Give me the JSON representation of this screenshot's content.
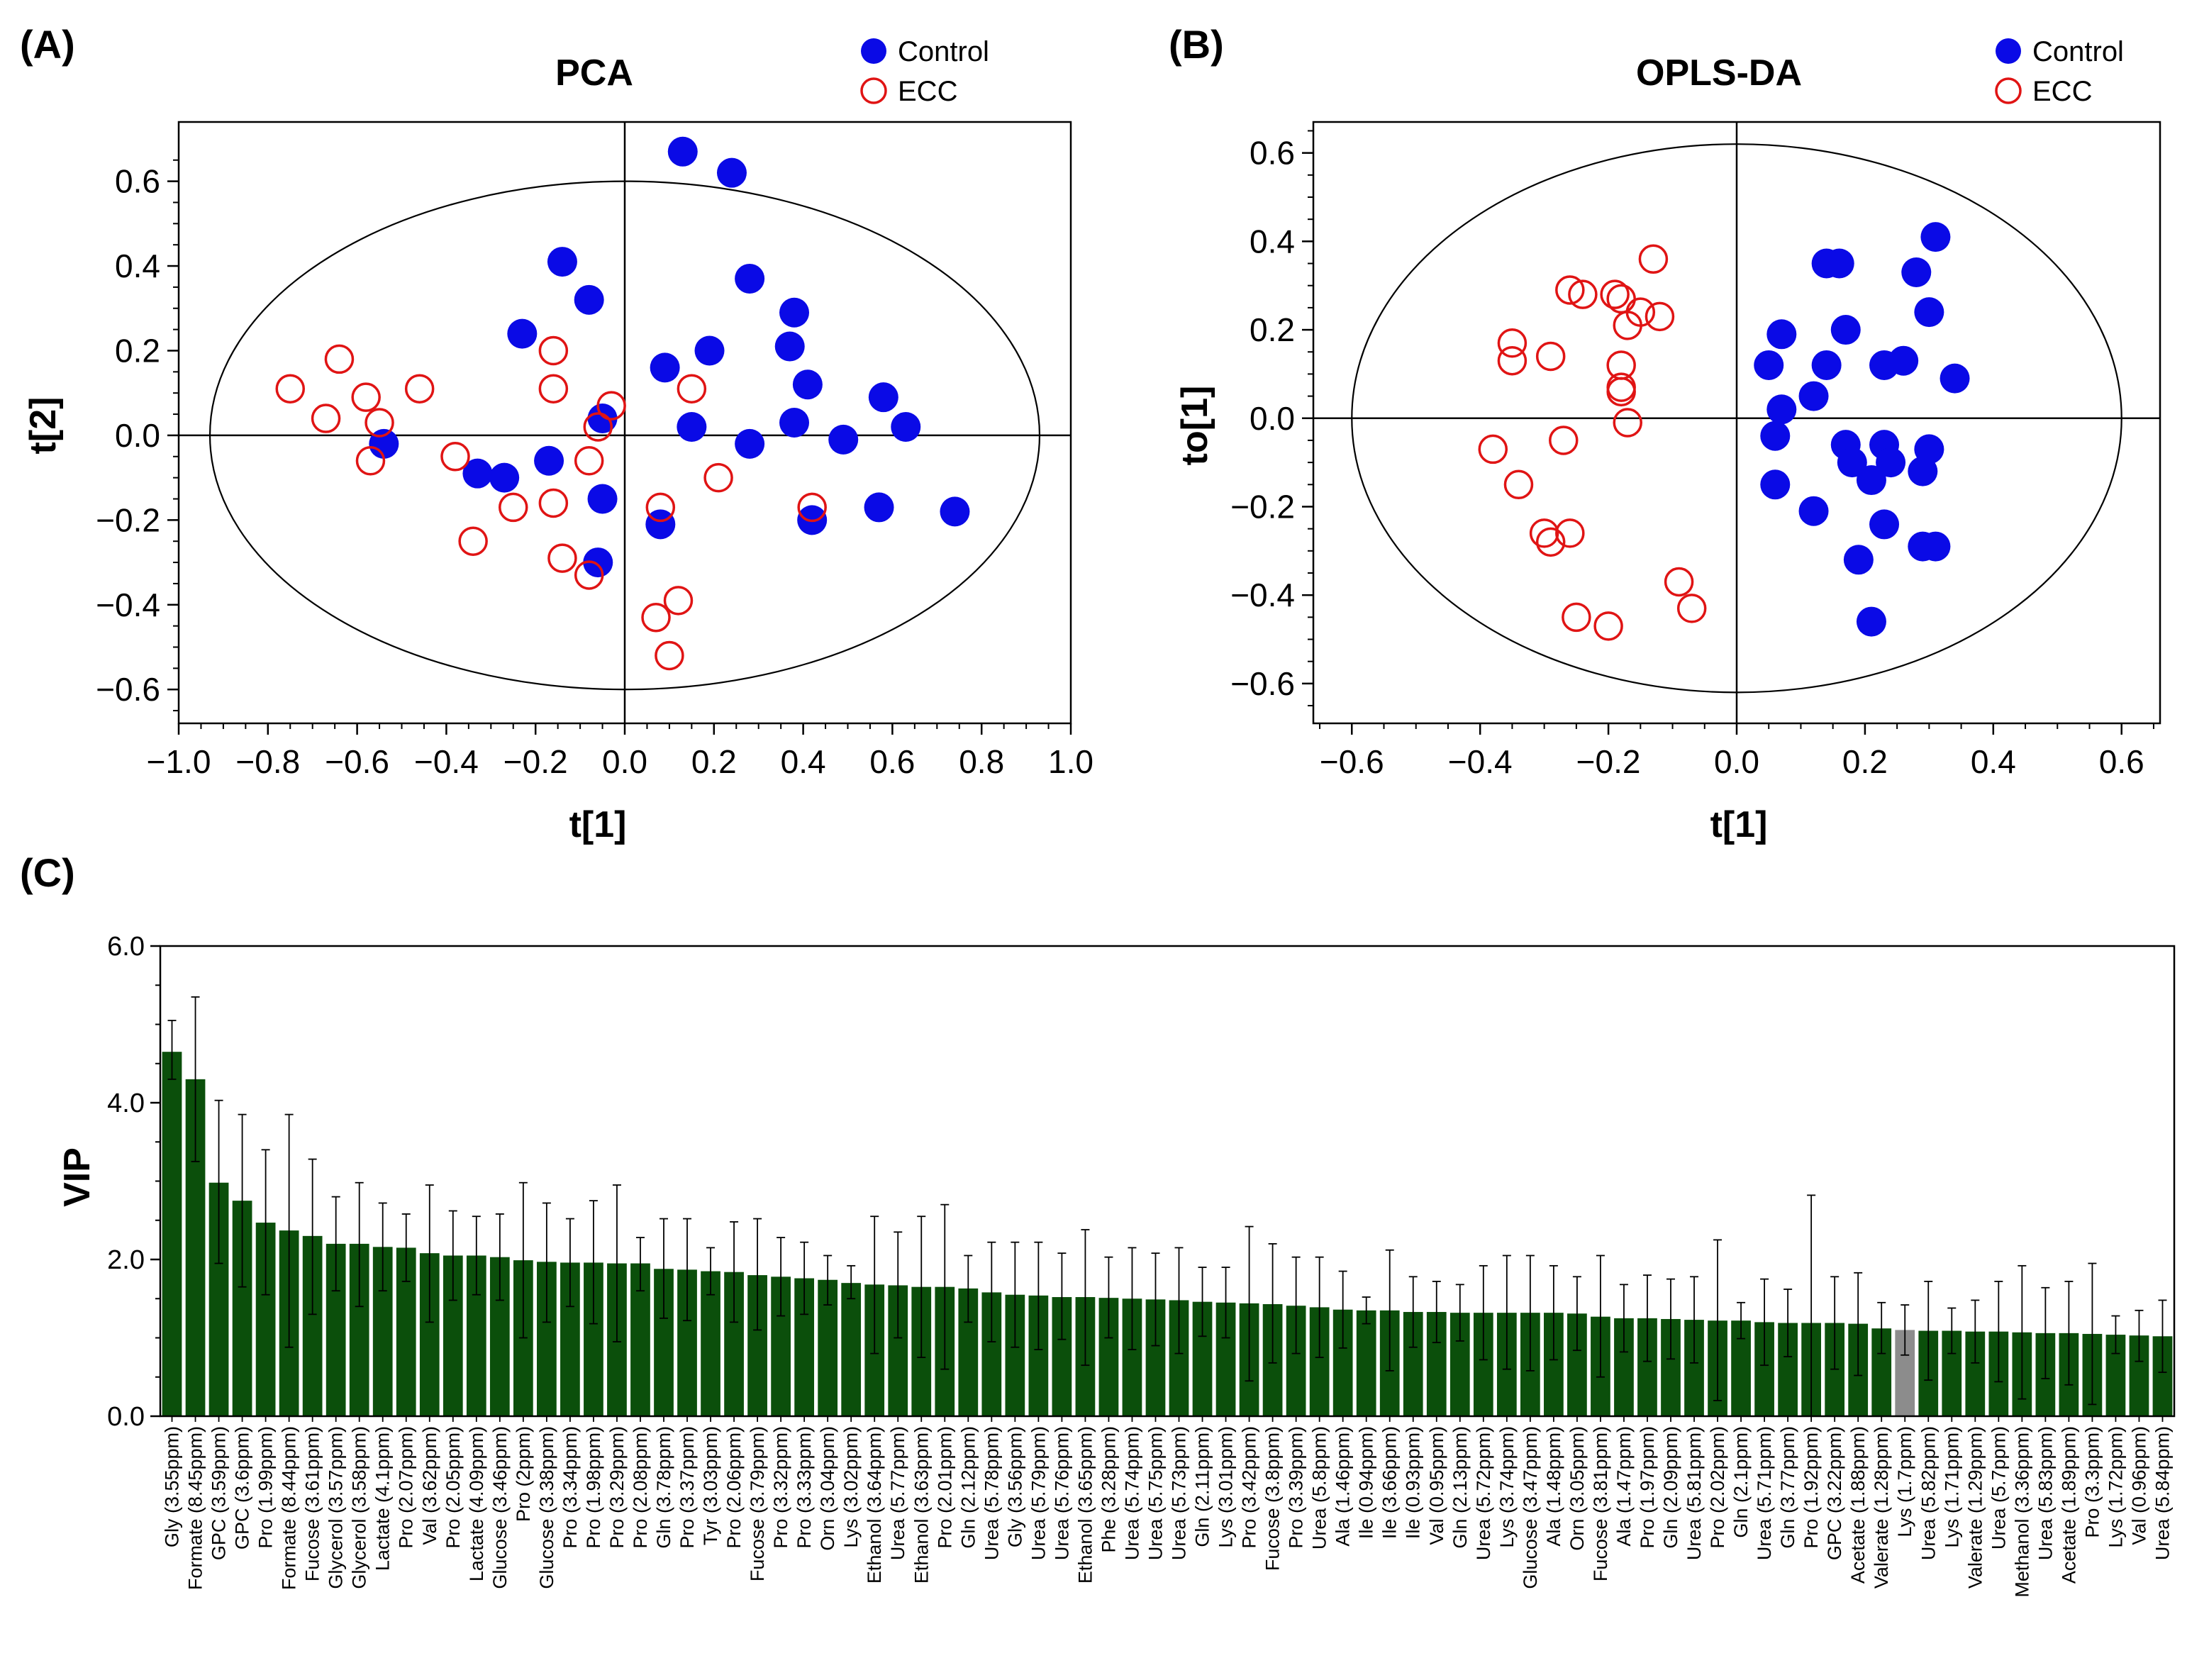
{
  "panels": {
    "A": {
      "label": "(A)"
    },
    "B": {
      "label": "(B)"
    },
    "C": {
      "label": "(C)"
    }
  },
  "colors": {
    "control": "#0a0ae6",
    "ecc": "#e01414",
    "bar": "#0b4f0b",
    "bar_highlight": "#8c8c8c",
    "axis": "#000000"
  },
  "chart_data": [
    {
      "type": "scatter",
      "title": "PCA",
      "xlabel": "t[1]",
      "ylabel": "t[2]",
      "xlim": [
        -1.0,
        1.0
      ],
      "ylim": [
        -0.68,
        0.74
      ],
      "xticks": [
        -1.0,
        -0.8,
        -0.6,
        -0.4,
        -0.2,
        0.0,
        0.2,
        0.4,
        0.6,
        0.8,
        1.0
      ],
      "xtick_labels": [
        "−1.0",
        "−0.8",
        "−0.6",
        "−0.4",
        "−0.2",
        "0.0",
        "0.2",
        "0.4",
        "0.6",
        "0.8",
        "1.0"
      ],
      "yticks": [
        -0.6,
        -0.4,
        -0.2,
        0.0,
        0.2,
        0.4,
        0.6
      ],
      "ytick_labels": [
        "−0.6",
        "−0.4",
        "−0.2",
        "0.0",
        "0.2",
        "0.4",
        "0.6"
      ],
      "ellipse": {
        "rx": 0.93,
        "ry": 0.6
      },
      "legend": {
        "position": "top-right",
        "entries": [
          "Control",
          "ECC"
        ]
      },
      "series": [
        {
          "name": "Control",
          "marker": "filled-circle",
          "points": [
            [
              0.13,
              0.67
            ],
            [
              0.24,
              0.62
            ],
            [
              -0.14,
              0.41
            ],
            [
              -0.08,
              0.32
            ],
            [
              0.28,
              0.37
            ],
            [
              -0.23,
              0.24
            ],
            [
              0.38,
              0.29
            ],
            [
              0.37,
              0.21
            ],
            [
              0.19,
              0.2
            ],
            [
              0.09,
              0.16
            ],
            [
              0.41,
              0.12
            ],
            [
              0.58,
              0.09
            ],
            [
              -0.05,
              0.04
            ],
            [
              0.15,
              0.02
            ],
            [
              0.38,
              0.03
            ],
            [
              0.63,
              0.02
            ],
            [
              -0.54,
              -0.02
            ],
            [
              0.28,
              -0.02
            ],
            [
              0.49,
              -0.01
            ],
            [
              -0.17,
              -0.06
            ],
            [
              -0.33,
              -0.09
            ],
            [
              -0.27,
              -0.1
            ],
            [
              -0.05,
              -0.15
            ],
            [
              0.57,
              -0.17
            ],
            [
              0.74,
              -0.18
            ],
            [
              0.42,
              -0.2
            ],
            [
              0.08,
              -0.21
            ],
            [
              -0.06,
              -0.3
            ]
          ]
        },
        {
          "name": "ECC",
          "marker": "open-circle",
          "points": [
            [
              -0.75,
              0.11
            ],
            [
              -0.64,
              0.18
            ],
            [
              -0.67,
              0.04
            ],
            [
              -0.58,
              0.09
            ],
            [
              -0.55,
              0.03
            ],
            [
              -0.46,
              0.11
            ],
            [
              -0.16,
              0.2
            ],
            [
              -0.16,
              0.11
            ],
            [
              -0.03,
              0.07
            ],
            [
              -0.06,
              0.02
            ],
            [
              0.15,
              0.11
            ],
            [
              -0.38,
              -0.05
            ],
            [
              -0.57,
              -0.06
            ],
            [
              -0.08,
              -0.06
            ],
            [
              -0.25,
              -0.17
            ],
            [
              -0.16,
              -0.16
            ],
            [
              0.08,
              -0.17
            ],
            [
              0.21,
              -0.1
            ],
            [
              0.42,
              -0.17
            ],
            [
              -0.34,
              -0.25
            ],
            [
              -0.14,
              -0.29
            ],
            [
              -0.08,
              -0.33
            ],
            [
              0.07,
              -0.43
            ],
            [
              0.12,
              -0.39
            ],
            [
              0.1,
              -0.52
            ]
          ]
        }
      ]
    },
    {
      "type": "scatter",
      "title": "OPLS-DA",
      "xlabel": "t[1]",
      "ylabel": "to[1]",
      "xlim": [
        -0.66,
        0.66
      ],
      "ylim": [
        -0.69,
        0.67
      ],
      "xticks": [
        -0.6,
        -0.4,
        -0.2,
        0.0,
        0.2,
        0.4,
        0.6
      ],
      "xtick_labels": [
        "−0.6",
        "−0.4",
        "−0.2",
        "0.0",
        "0.2",
        "0.4",
        "0.6"
      ],
      "yticks": [
        -0.6,
        -0.4,
        -0.2,
        0.0,
        0.2,
        0.4,
        0.6
      ],
      "ytick_labels": [
        "−0.6",
        "−0.4",
        "−0.2",
        "0.0",
        "0.2",
        "0.4",
        "0.6"
      ],
      "ellipse": {
        "rx": 0.6,
        "ry": 0.62
      },
      "legend": {
        "position": "top-right",
        "entries": [
          "Control",
          "ECC"
        ]
      },
      "series": [
        {
          "name": "Control",
          "marker": "filled-circle",
          "points": [
            [
              0.31,
              0.41
            ],
            [
              0.14,
              0.35
            ],
            [
              0.16,
              0.35
            ],
            [
              0.28,
              0.33
            ],
            [
              0.3,
              0.24
            ],
            [
              0.17,
              0.2
            ],
            [
              0.07,
              0.19
            ],
            [
              0.26,
              0.13
            ],
            [
              0.23,
              0.12
            ],
            [
              0.14,
              0.12
            ],
            [
              0.05,
              0.12
            ],
            [
              0.34,
              0.09
            ],
            [
              0.12,
              0.05
            ],
            [
              0.07,
              0.02
            ],
            [
              0.06,
              -0.04
            ],
            [
              0.17,
              -0.06
            ],
            [
              0.23,
              -0.06
            ],
            [
              0.18,
              -0.1
            ],
            [
              0.24,
              -0.1
            ],
            [
              0.3,
              -0.07
            ],
            [
              0.21,
              -0.14
            ],
            [
              0.06,
              -0.15
            ],
            [
              0.29,
              -0.12
            ],
            [
              0.12,
              -0.21
            ],
            [
              0.23,
              -0.24
            ],
            [
              0.29,
              -0.29
            ],
            [
              0.31,
              -0.29
            ],
            [
              0.19,
              -0.32
            ],
            [
              0.21,
              -0.46
            ]
          ]
        },
        {
          "name": "ECC",
          "marker": "open-circle",
          "points": [
            [
              -0.13,
              0.36
            ],
            [
              -0.26,
              0.29
            ],
            [
              -0.24,
              0.28
            ],
            [
              -0.19,
              0.28
            ],
            [
              -0.18,
              0.27
            ],
            [
              -0.15,
              0.24
            ],
            [
              -0.12,
              0.23
            ],
            [
              -0.17,
              0.21
            ],
            [
              -0.35,
              0.17
            ],
            [
              -0.35,
              0.13
            ],
            [
              -0.29,
              0.14
            ],
            [
              -0.18,
              0.12
            ],
            [
              -0.18,
              0.07
            ],
            [
              -0.18,
              0.06
            ],
            [
              -0.17,
              -0.01
            ],
            [
              -0.27,
              -0.05
            ],
            [
              -0.38,
              -0.07
            ],
            [
              -0.34,
              -0.15
            ],
            [
              -0.3,
              -0.26
            ],
            [
              -0.29,
              -0.28
            ],
            [
              -0.26,
              -0.26
            ],
            [
              -0.09,
              -0.37
            ],
            [
              -0.07,
              -0.43
            ],
            [
              -0.25,
              -0.45
            ],
            [
              -0.2,
              -0.47
            ]
          ]
        }
      ]
    },
    {
      "type": "bar",
      "title": "",
      "xlabel": "",
      "ylabel": "VIP",
      "ylim": [
        0,
        6.0
      ],
      "yticks": [
        0.0,
        2.0,
        4.0,
        6.0
      ],
      "ytick_labels": [
        "0.0",
        "2.0",
        "4.0",
        "6.0"
      ],
      "highlight_index": 74,
      "categories": [
        "Gly (3.55ppm)",
        "Formate (8.45ppm)",
        "GPC (3.59ppm)",
        "GPC (3.6ppm)",
        "Pro (1.99ppm)",
        "Formate (8.44ppm)",
        "Fucose (3.61ppm)",
        "Glycerol (3.57ppm)",
        "Glycerol (3.58ppm)",
        "Lactate (4.1ppm)",
        "Pro (2.07ppm)",
        "Val (3.62ppm)",
        "Pro (2.05ppm)",
        "Lactate (4.09ppm)",
        "Glucose (3.46ppm)",
        "Pro (2ppm)",
        "Glucose (3.38ppm)",
        "Pro (3.34ppm)",
        "Pro (1.98ppm)",
        "Pro (3.29ppm)",
        "Pro (2.08ppm)",
        "Gln (3.78ppm)",
        "Pro (3.37ppm)",
        "Tyr (3.03ppm)",
        "Pro (2.06ppm)",
        "Fucose (3.79ppm)",
        "Pro (3.32ppm)",
        "Pro (3.33ppm)",
        "Orn (3.04ppm)",
        "Lys (3.02ppm)",
        "Ethanol (3.64ppm)",
        "Urea (5.77ppm)",
        "Ethanol (3.63ppm)",
        "Pro (2.01ppm)",
        "Gln (2.12ppm)",
        "Urea (5.78ppm)",
        "Gly (3.56ppm)",
        "Urea (5.79ppm)",
        "Urea (5.76ppm)",
        "Ethanol (3.65ppm)",
        "Phe (3.28ppm)",
        "Urea (5.74ppm)",
        "Urea (5.75ppm)",
        "Urea (5.73ppm)",
        "Gln (2.11ppm)",
        "Lys (3.01ppm)",
        "Pro (3.42ppm)",
        "Fucose (3.8ppm)",
        "Pro (3.39ppm)",
        "Urea (5.8ppm)",
        "Ala (1.46ppm)",
        "Ile (0.94ppm)",
        "Ile (3.66ppm)",
        "Ile (0.93ppm)",
        "Val (0.95ppm)",
        "Gln (2.13ppm)",
        "Urea (5.72ppm)",
        "Lys (3.74ppm)",
        "Glucose (3.47ppm)",
        "Ala (1.48ppm)",
        "Orn (3.05ppm)",
        "Fucose (3.81ppm)",
        "Ala (1.47ppm)",
        "Pro (1.97ppm)",
        "Gln (2.09ppm)",
        "Urea (5.81ppm)",
        "Pro (2.02ppm)",
        "Gln (2.1ppm)",
        "Urea (5.71ppm)",
        "Gln (3.77ppm)",
        "Pro (1.92ppm)",
        "GPC (3.22ppm)",
        "Acetate (1.88ppm)",
        "Valerate (1.28ppm)",
        "Lys (1.7ppm)",
        "Urea (5.82ppm)",
        "Lys (1.71ppm)",
        "Valerate (1.29ppm)",
        "Urea (5.7ppm)",
        "Methanol (3.36ppm)",
        "Urea (5.83ppm)",
        "Acetate (1.89ppm)",
        "Pro (3.3ppm)",
        "Lys (1.72ppm)",
        "Val (0.96ppm)",
        "Urea (5.84ppm)"
      ],
      "values": [
        4.65,
        4.3,
        2.98,
        2.75,
        2.47,
        2.37,
        2.3,
        2.2,
        2.2,
        2.16,
        2.15,
        2.08,
        2.05,
        2.05,
        2.03,
        1.99,
        1.97,
        1.96,
        1.96,
        1.95,
        1.95,
        1.88,
        1.87,
        1.85,
        1.84,
        1.8,
        1.78,
        1.76,
        1.74,
        1.7,
        1.68,
        1.67,
        1.65,
        1.65,
        1.63,
        1.58,
        1.55,
        1.54,
        1.52,
        1.52,
        1.51,
        1.5,
        1.49,
        1.48,
        1.46,
        1.45,
        1.44,
        1.43,
        1.41,
        1.39,
        1.36,
        1.35,
        1.35,
        1.33,
        1.33,
        1.32,
        1.32,
        1.32,
        1.32,
        1.32,
        1.31,
        1.27,
        1.25,
        1.25,
        1.24,
        1.23,
        1.22,
        1.22,
        1.2,
        1.19,
        1.19,
        1.19,
        1.18,
        1.12,
        1.1,
        1.09,
        1.09,
        1.08,
        1.08,
        1.07,
        1.06,
        1.06,
        1.05,
        1.04,
        1.03,
        1.02
      ],
      "errors_upper": [
        5.05,
        5.35,
        4.03,
        3.85,
        3.4,
        3.85,
        3.28,
        2.8,
        2.98,
        2.72,
        2.58,
        2.95,
        2.62,
        2.55,
        2.58,
        2.98,
        2.72,
        2.52,
        2.75,
        2.95,
        2.28,
        2.52,
        2.52,
        2.15,
        2.48,
        2.52,
        2.28,
        2.22,
        2.05,
        1.92,
        2.55,
        2.35,
        2.55,
        2.7,
        2.05,
        2.22,
        2.22,
        2.22,
        2.08,
        2.38,
        2.03,
        2.15,
        2.08,
        2.15,
        1.9,
        1.9,
        2.42,
        2.2,
        2.03,
        2.03,
        1.85,
        1.52,
        2.12,
        1.78,
        1.72,
        1.68,
        1.92,
        2.05,
        2.05,
        1.92,
        1.78,
        2.05,
        1.68,
        1.8,
        1.75,
        1.78,
        2.25,
        1.45,
        1.75,
        1.62,
        2.82,
        1.78,
        1.83,
        1.45,
        1.42,
        1.72,
        1.38,
        1.48,
        1.72,
        1.92,
        1.64,
        1.72,
        1.95,
        1.28,
        1.35,
        1.48
      ],
      "errors_lower": [
        4.3,
        3.25,
        1.95,
        1.65,
        1.55,
        0.88,
        1.3,
        1.6,
        1.4,
        1.6,
        1.72,
        1.2,
        1.48,
        1.55,
        1.48,
        1.0,
        1.2,
        1.4,
        1.18,
        0.95,
        1.6,
        1.25,
        1.22,
        1.55,
        1.2,
        1.1,
        1.28,
        1.3,
        1.42,
        1.5,
        0.8,
        1.0,
        0.75,
        0.6,
        1.2,
        0.95,
        0.88,
        0.85,
        0.98,
        0.65,
        1.0,
        0.85,
        0.9,
        0.8,
        1.02,
        1.0,
        0.45,
        0.68,
        0.8,
        0.75,
        0.87,
        1.18,
        0.58,
        0.88,
        0.94,
        0.96,
        0.72,
        0.6,
        0.58,
        0.72,
        0.84,
        0.5,
        0.82,
        0.7,
        0.73,
        0.68,
        0.2,
        0.99,
        0.65,
        0.76,
        0.0,
        0.6,
        0.52,
        0.8,
        0.78,
        0.46,
        0.8,
        0.68,
        0.44,
        0.22,
        0.48,
        0.4,
        0.15,
        0.8,
        0.7,
        0.56
      ]
    }
  ]
}
